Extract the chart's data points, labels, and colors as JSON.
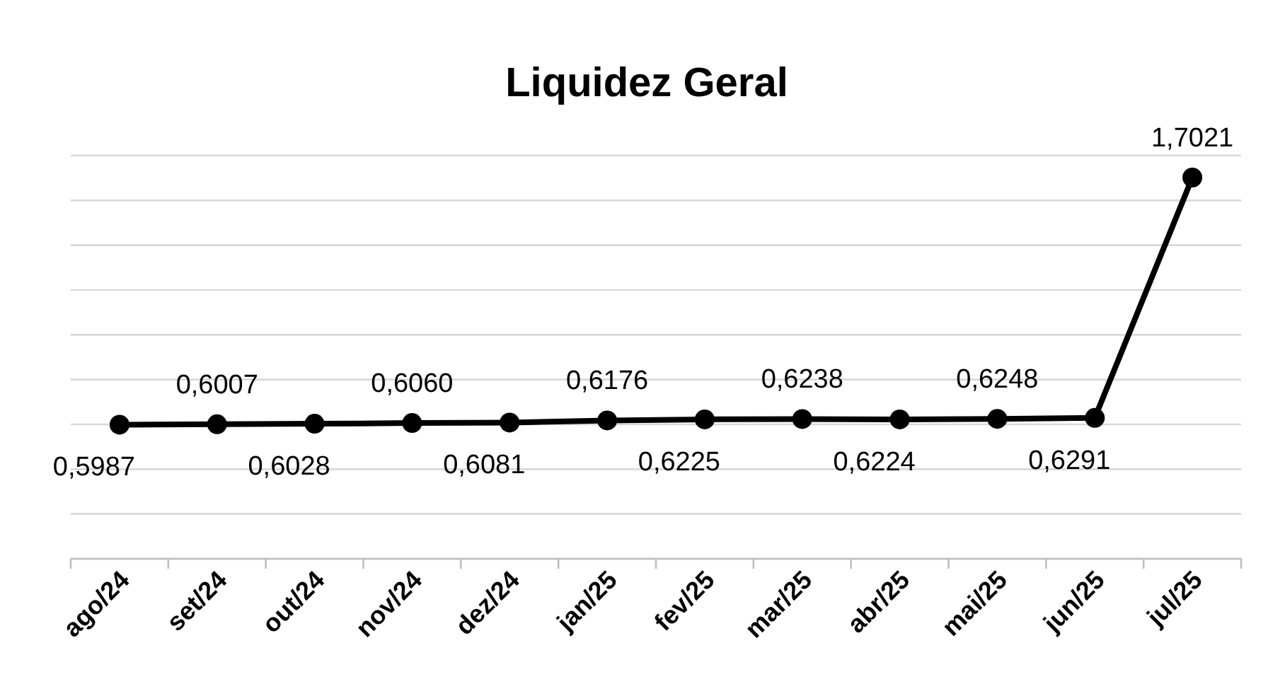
{
  "chart_data": {
    "type": "line",
    "title": "Liquidez Geral",
    "categories": [
      "ago/24",
      "set/24",
      "out/24",
      "nov/24",
      "dez/24",
      "jan/25",
      "fev/25",
      "mar/25",
      "abr/25",
      "mai/25",
      "jun/25",
      "jul/25"
    ],
    "series": [
      {
        "color": "#000000",
        "values": [
          0.5987,
          0.6007,
          0.6028,
          0.606,
          0.6081,
          0.6176,
          0.6225,
          0.6238,
          0.6224,
          0.6248,
          0.6291,
          1.7021
        ],
        "value_labels": [
          "0,5987",
          "0,6007",
          "0,6028",
          "0,6060",
          "0,6081",
          "0,6176",
          "0,6225",
          "0,6238",
          "0,6224",
          "0,6248",
          "0,6291",
          "1,7021"
        ]
      }
    ],
    "ylim": [
      0,
      1.8
    ],
    "yticks": [
      {
        "value": 0,
        "label": null
      },
      {
        "value": 0.2,
        "label": null
      },
      {
        "value": 0.4,
        "label": null
      },
      {
        "value": 0.6,
        "label": null
      },
      {
        "value": 0.8,
        "label": null
      },
      {
        "value": 1,
        "label": null
      },
      {
        "value": 1.2,
        "label": null
      },
      {
        "value": 1.4,
        "label": null
      },
      {
        "value": 1.6,
        "label": null
      },
      {
        "value": 1.8,
        "label": null
      }
    ],
    "tick_labels": "x",
    "grid": "y",
    "marker": "circle",
    "line_style": "solid"
  }
}
